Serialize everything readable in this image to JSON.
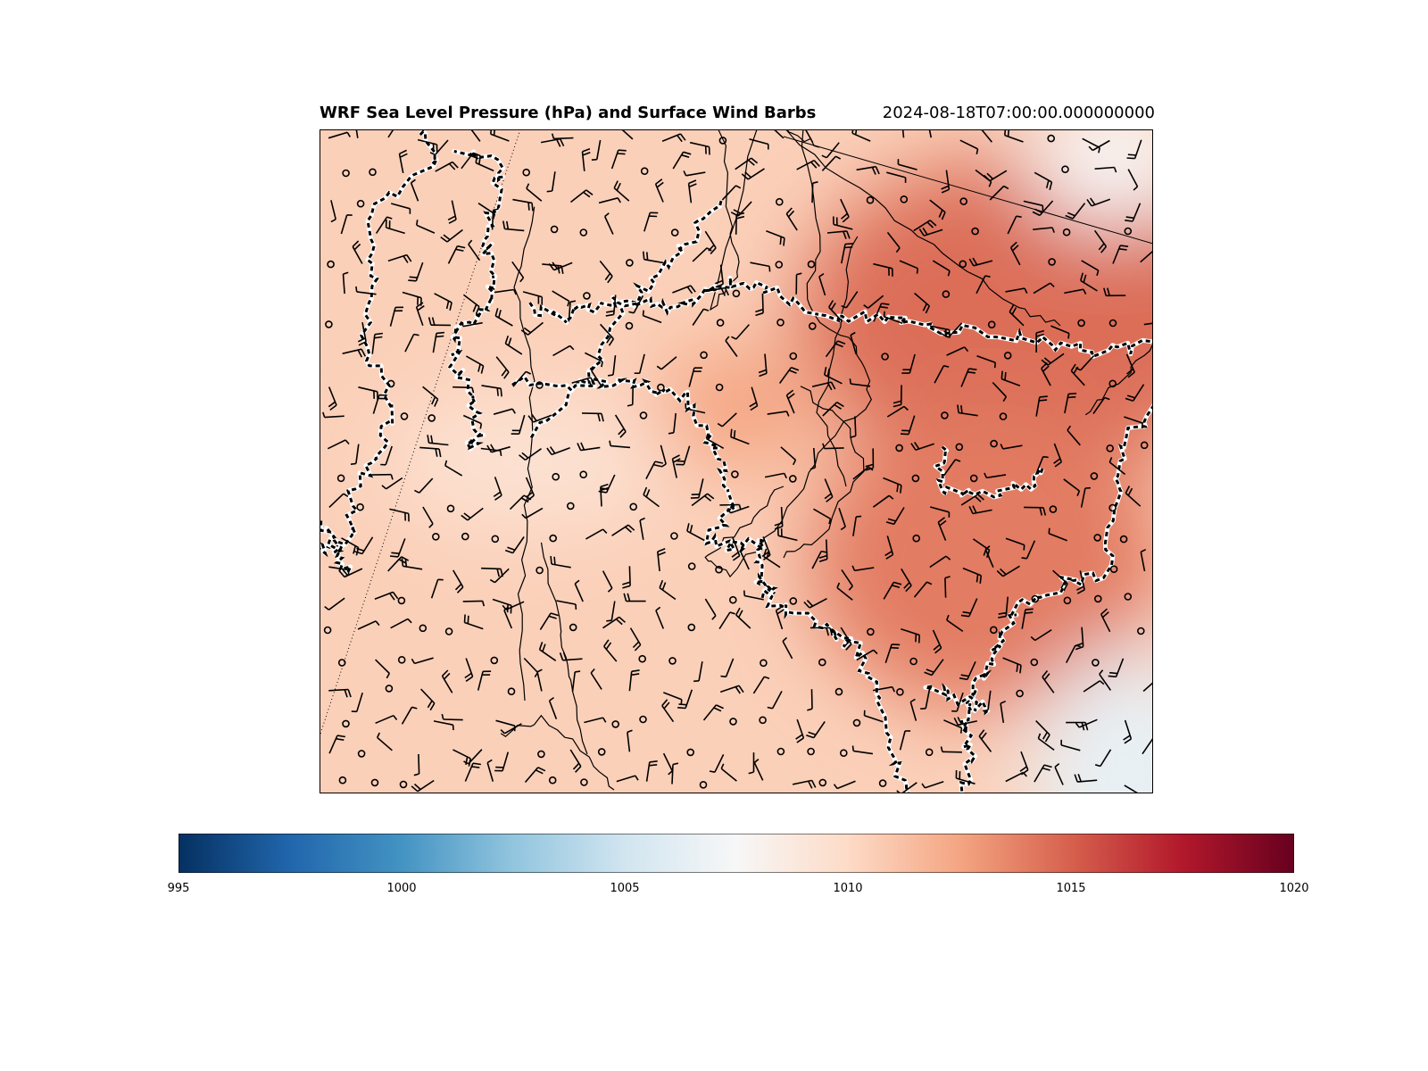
{
  "figure": {
    "title": "WRF Sea Level Pressure (hPa) and Surface Wind Barbs",
    "timestamp": "2024-08-18T07:00:00.000000000"
  },
  "colorbar": {
    "colormap": "RdBu_r",
    "min": 995,
    "max": 1020,
    "ticks": [
      "995",
      "1000",
      "1005",
      "1010",
      "1015",
      "1020"
    ],
    "stops": [
      "#053061",
      "#2166ac",
      "#4393c3",
      "#92c5de",
      "#d1e5f0",
      "#f7f7f7",
      "#fddbc7",
      "#f4a582",
      "#d6604d",
      "#b2182b",
      "#67001f"
    ]
  },
  "map": {
    "field": "sea level pressure",
    "units": "hPa",
    "pressure_pattern": [
      {
        "name": "high-east",
        "center_lon_frac": 0.85,
        "center_lat_frac": 0.28,
        "value": 1014.5
      },
      {
        "name": "high-southeast",
        "center_lon_frac": 0.8,
        "center_lat_frac": 0.65,
        "value": 1014.0
      },
      {
        "name": "high-central",
        "center_lon_frac": 0.5,
        "center_lat_frac": 0.42,
        "value": 1012.5
      },
      {
        "name": "low-southeast-corner",
        "center_lon_frac": 0.97,
        "center_lat_frac": 0.97,
        "value": 1006.5
      },
      {
        "name": "low-northeast-corner",
        "center_lon_frac": 0.95,
        "center_lat_frac": 0.05,
        "value": 1007.5
      },
      {
        "name": "ridge-trough-west",
        "center_lon_frac": 0.25,
        "center_lat_frac": 0.5,
        "value": 1009.5
      }
    ],
    "background_value": 1010.5,
    "coastline_color": "#000000",
    "border_color": "#000000",
    "border_highlight": "#ffffff",
    "barb_color": "#000000",
    "calm_marker": "circle"
  }
}
